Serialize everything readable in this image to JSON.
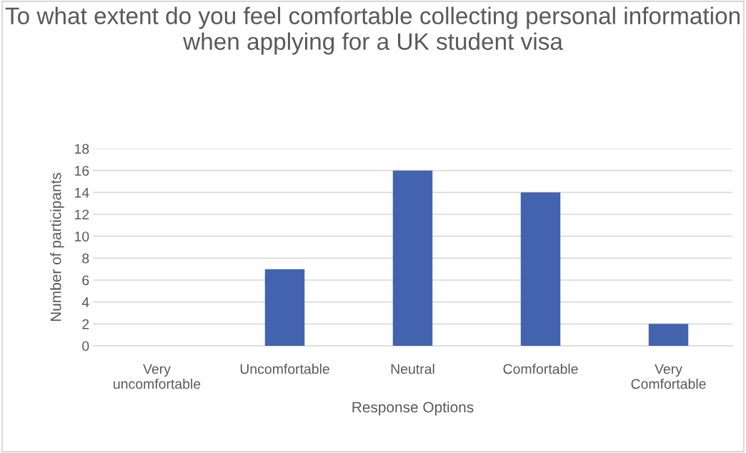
{
  "chart_data": {
    "type": "bar",
    "title": "To what extent do you feel comfortable collecting personal information when applying for a UK student visa",
    "xlabel": "Response Options",
    "ylabel": "Number of participants",
    "categories": [
      "Very uncomfortable",
      "Uncomfortable",
      "Neutral",
      "Comfortable",
      "Very Comfortable"
    ],
    "values": [
      0,
      7,
      16,
      14,
      2
    ],
    "color": "#4463ae",
    "ylim": [
      0,
      18
    ],
    "yticks": [
      0,
      2,
      4,
      6,
      8,
      10,
      12,
      14,
      16,
      18
    ],
    "grid": "y",
    "legend": false
  }
}
